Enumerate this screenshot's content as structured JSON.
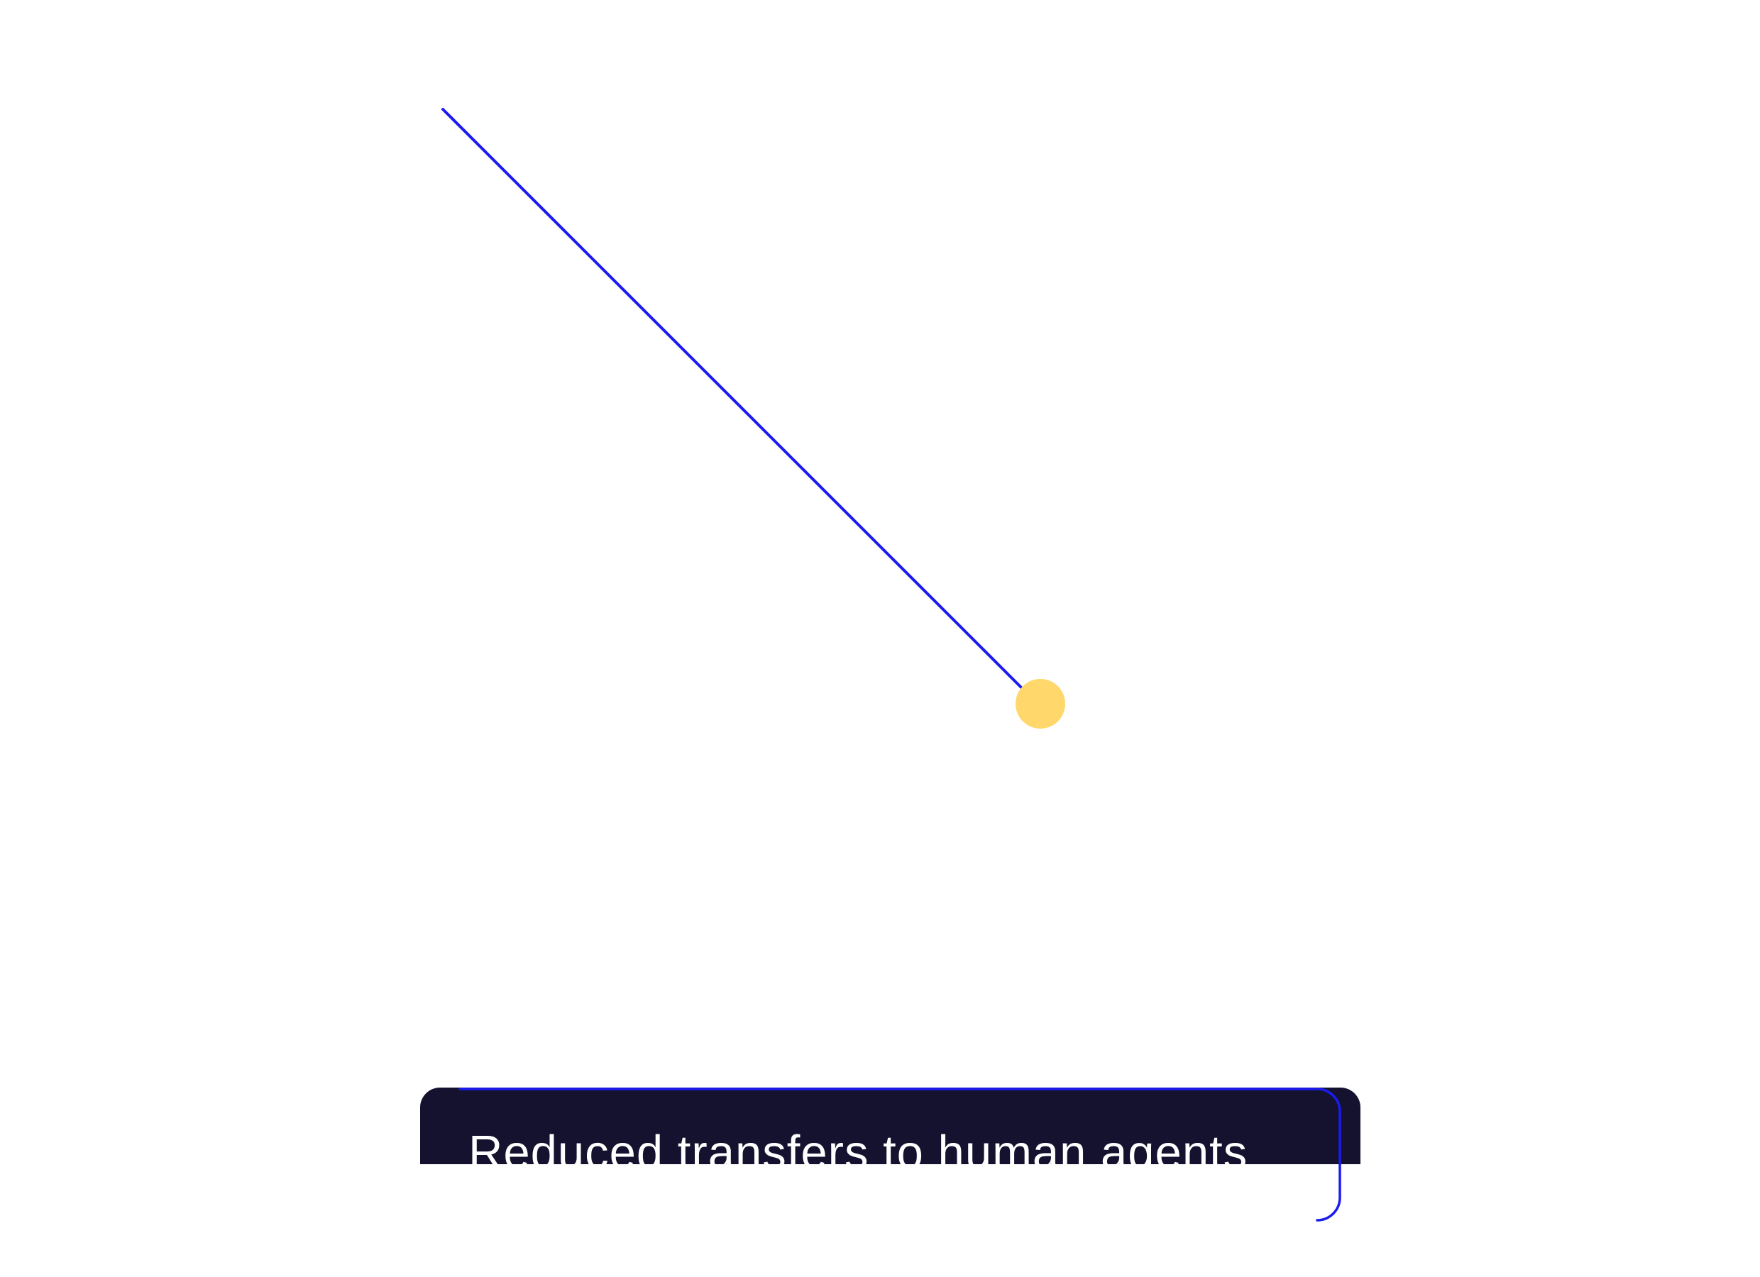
{
  "label": {
    "text": "Reduced transfers to human agents"
  },
  "colors": {
    "background": "#ffffff",
    "line": "#1b1bf0",
    "dot": "#ffd76b",
    "card": "#14122f",
    "card_text": "#ffffff"
  },
  "icons": {
    "endpoint": "yellow-dot-icon",
    "bracket": "corner-bracket-outline"
  }
}
